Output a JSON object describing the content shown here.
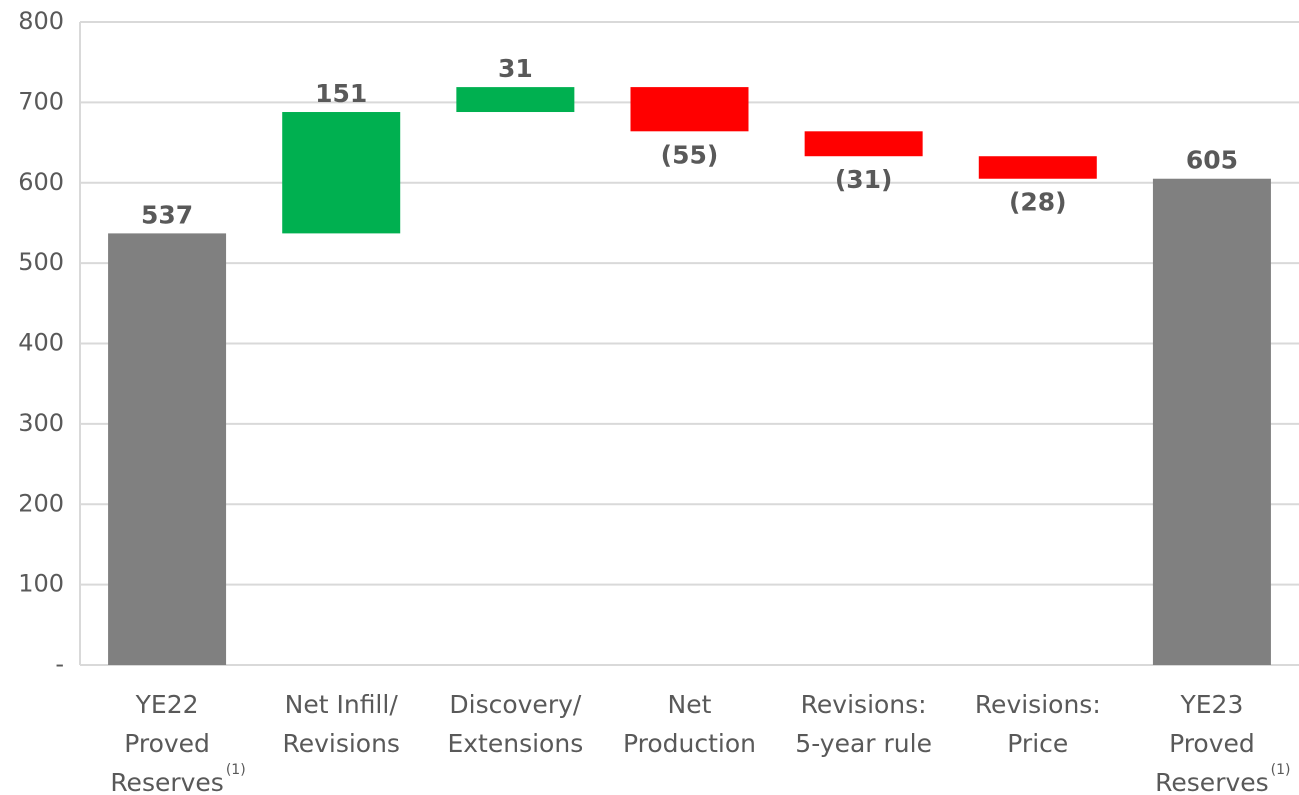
{
  "chart_data": {
    "type": "waterfall",
    "categories": [
      [
        "YE22",
        "Proved",
        "Reserves"
      ],
      [
        "Net Infill/",
        "Revisions"
      ],
      [
        "Discovery/",
        "Extensions"
      ],
      [
        "Net",
        "Production"
      ],
      [
        "Revisions:",
        "5-year rule"
      ],
      [
        "Revisions:",
        "Price"
      ],
      [
        "YE23",
        "Proved",
        "Reserves"
      ]
    ],
    "category_notes": [
      "(1)",
      null,
      null,
      null,
      null,
      null,
      "(1)"
    ],
    "values": [
      537,
      151,
      31,
      -55,
      -31,
      -28,
      605
    ],
    "value_labels": [
      "537",
      "151",
      "31",
      "(55)",
      "(31)",
      "(28)",
      "605"
    ],
    "measures": [
      "total",
      "relative",
      "relative",
      "relative",
      "relative",
      "relative",
      "total"
    ],
    "colors": {
      "total": "#808080",
      "increase": "#00b050",
      "decrease": "#ff0000"
    },
    "ylim": [
      0,
      800
    ],
    "yticks": [
      {
        "value": 0,
        "label": "-"
      },
      100,
      200,
      300,
      400,
      500,
      600,
      700,
      800
    ],
    "grid": true
  }
}
